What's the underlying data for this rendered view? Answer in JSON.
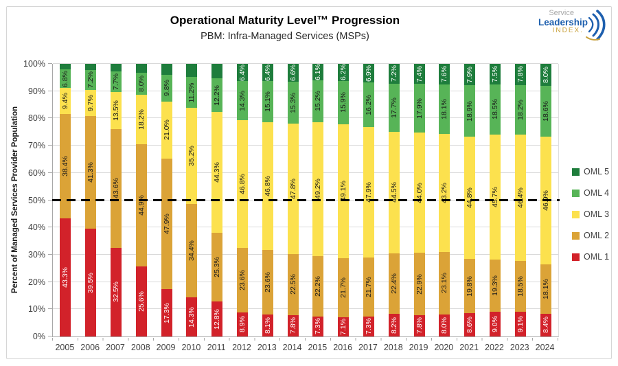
{
  "header": {
    "title": "Operational Maturity Level™ Progression",
    "subtitle": "PBM: Infra-Managed Services (MSPs)"
  },
  "logo": {
    "line1": "Service",
    "line2": "Leadership",
    "line3": "INDEX.",
    "blue": "#1d5fae",
    "gold": "#c9a13b",
    "gray": "#a8a8a8"
  },
  "chart_data": {
    "type": "bar",
    "stacked": true,
    "title": "Operational Maturity Level™ Progression",
    "subtitle": "PBM: Infra-Managed Services (MSPs)",
    "xlabel": "",
    "ylabel": "Percent of Managed Services Provider Population",
    "ylim": [
      0,
      100
    ],
    "grid": true,
    "legend_position": "right",
    "ytick_labels": [
      "0%",
      "10%",
      "20%",
      "30%",
      "40%",
      "50%",
      "60%",
      "70%",
      "80%",
      "90%",
      "100%"
    ],
    "categories": [
      "2005",
      "2006",
      "2007",
      "2008",
      "2009",
      "2010",
      "2011",
      "2012",
      "2013",
      "2014",
      "2015",
      "2016",
      "2017",
      "2018",
      "2019",
      "2020",
      "2021",
      "2022",
      "2023",
      "2024"
    ],
    "series": [
      {
        "name": "OML 1",
        "color": "#d2222a",
        "label_color": "#ffffff",
        "values": [
          43.3,
          39.5,
          32.5,
          25.6,
          17.3,
          14.3,
          12.8,
          8.9,
          8.1,
          7.8,
          7.3,
          7.1,
          7.3,
          8.2,
          7.8,
          8.0,
          8.6,
          9.0,
          9.1,
          8.4
        ],
        "labels": [
          "43.3%",
          "39.5%",
          "32.5%",
          "25.6%",
          "17.3%",
          "14.3%",
          "12.8%",
          "8.9%",
          "8.1%",
          "7.8%",
          "7.3%",
          "7.1%",
          "7.3%",
          "8.2%",
          "7.8%",
          "8.0%",
          "8.6%",
          "9.0%",
          "9.1%",
          "8.4%"
        ]
      },
      {
        "name": "OML 2",
        "color": "#dba337",
        "label_color": "#1a1a1a",
        "values": [
          38.4,
          41.3,
          43.6,
          44.9,
          47.9,
          34.4,
          25.3,
          23.6,
          23.6,
          22.5,
          22.2,
          21.7,
          21.7,
          22.4,
          22.9,
          23.1,
          19.8,
          19.3,
          18.5,
          18.1
        ],
        "labels": [
          "38.4%",
          "41.3%",
          "43.6%",
          "44.9%",
          "47.9%",
          "34.4%",
          "25.3%",
          "23.6%",
          "23.6%",
          "22.5%",
          "22.2%",
          "21.7%",
          "21.7%",
          "22.4%",
          "22.9%",
          "23.1%",
          "19.8%",
          "19.3%",
          "18.5%",
          "18.1%"
        ]
      },
      {
        "name": "OML 3",
        "color": "#fce14e",
        "label_color": "#1a1a1a",
        "values": [
          9.4,
          9.7,
          13.5,
          18.2,
          21.0,
          35.2,
          44.3,
          46.8,
          46.8,
          47.8,
          49.2,
          49.1,
          47.9,
          44.5,
          44.0,
          43.2,
          44.8,
          45.7,
          46.4,
          46.9
        ],
        "labels": [
          "9.4%",
          "9.7%",
          "13.5%",
          "18.2%",
          "21.0%",
          "35.2%",
          "44.3%",
          "46.8%",
          "46.8%",
          "47.8%",
          "49.2%",
          "49.1%",
          "47.9%",
          "44.5%",
          "44.0%",
          "43.2%",
          "44.8%",
          "45.7%",
          "46.4%",
          "46.9%"
        ]
      },
      {
        "name": "OML 4",
        "color": "#57b457",
        "label_color": "#1a1a1a",
        "values": [
          6.8,
          7.2,
          7.7,
          8.0,
          9.8,
          11.2,
          12.2,
          14.3,
          15.1,
          15.3,
          15.2,
          15.9,
          16.2,
          17.7,
          17.9,
          18.1,
          18.9,
          18.5,
          18.2,
          18.6
        ],
        "labels": [
          "6.8%",
          "7.2%",
          "7.7%",
          "8.0%",
          "9.8%",
          "11.2%",
          "12.2%",
          "14.3%",
          "15.1%",
          "15.3%",
          "15.2%",
          "15.9%",
          "16.2%",
          "17.7%",
          "17.9%",
          "18.1%",
          "18.9%",
          "18.5%",
          "18.2%",
          "18.6%"
        ]
      },
      {
        "name": "OML 5",
        "color": "#1e7d3c",
        "label_color": "#ffffff",
        "values": [
          2.1,
          2.3,
          2.7,
          3.3,
          4.0,
          4.9,
          5.4,
          6.4,
          6.4,
          6.6,
          6.1,
          6.2,
          6.9,
          7.2,
          7.4,
          7.6,
          7.9,
          7.5,
          7.8,
          8.0
        ],
        "labels": [
          "",
          "",
          "",
          "",
          "",
          "",
          "",
          "6.4%",
          "6.4%",
          "6.6%",
          "6.1%",
          "6.2%",
          "6.9%",
          "7.2%",
          "7.4%",
          "7.6%",
          "7.9%",
          "7.5%",
          "7.8%",
          "8.0%"
        ]
      }
    ],
    "legend_order": [
      "OML 5",
      "OML 4",
      "OML 3",
      "OML 2",
      "OML 1"
    ],
    "reference_line": {
      "value": 50,
      "style": "dashed",
      "color": "#000000"
    }
  }
}
